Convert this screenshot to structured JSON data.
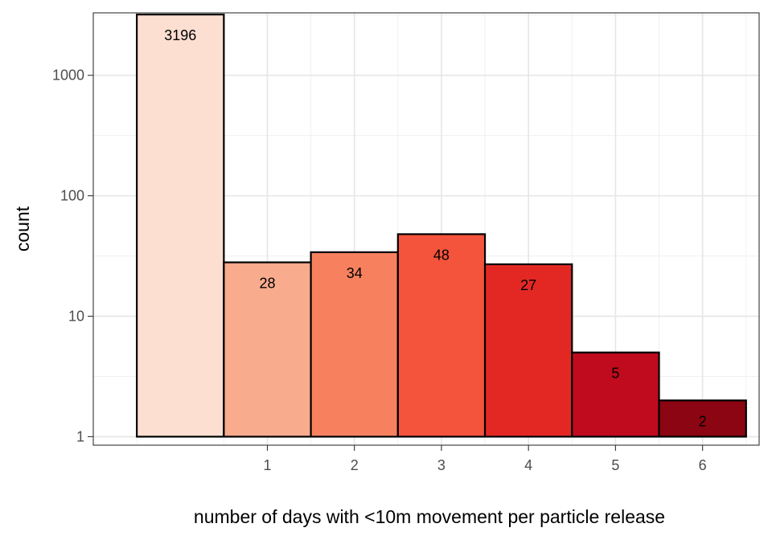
{
  "chart_data": {
    "type": "bar",
    "xlabel": "number of days with <10m movement per particle release",
    "ylabel": "count",
    "y_scale": "log10",
    "ylim": [
      0.85,
      3300
    ],
    "xlim": [
      -1.0,
      6.65
    ],
    "grid": true,
    "theme": "white background with light gray grid and black panel border",
    "bars": [
      {
        "x": 0,
        "value": 3196,
        "label": "3196",
        "color": "#FCDFD1"
      },
      {
        "x": 1,
        "value": 28,
        "label": "28",
        "color": "#F9AB8E"
      },
      {
        "x": 2,
        "value": 34,
        "label": "34",
        "color": "#F7815F"
      },
      {
        "x": 3,
        "value": 48,
        "label": "48",
        "color": "#F4533C"
      },
      {
        "x": 4,
        "value": 27,
        "label": "27",
        "color": "#E32824"
      },
      {
        "x": 5,
        "value": 5,
        "label": "5",
        "color": "#BF0B1D"
      },
      {
        "x": 6,
        "value": 2,
        "label": "2",
        "color": "#8C0512"
      }
    ],
    "x_ticks": [
      {
        "value": 1,
        "label": "1"
      },
      {
        "value": 2,
        "label": "2"
      },
      {
        "value": 3,
        "label": "3"
      },
      {
        "value": 4,
        "label": "4"
      },
      {
        "value": 5,
        "label": "5"
      },
      {
        "value": 6,
        "label": "6"
      }
    ],
    "y_ticks": [
      {
        "value": 1,
        "label": "1"
      },
      {
        "value": 10,
        "label": "10"
      },
      {
        "value": 100,
        "label": "100"
      },
      {
        "value": 1000,
        "label": "1000"
      }
    ]
  }
}
